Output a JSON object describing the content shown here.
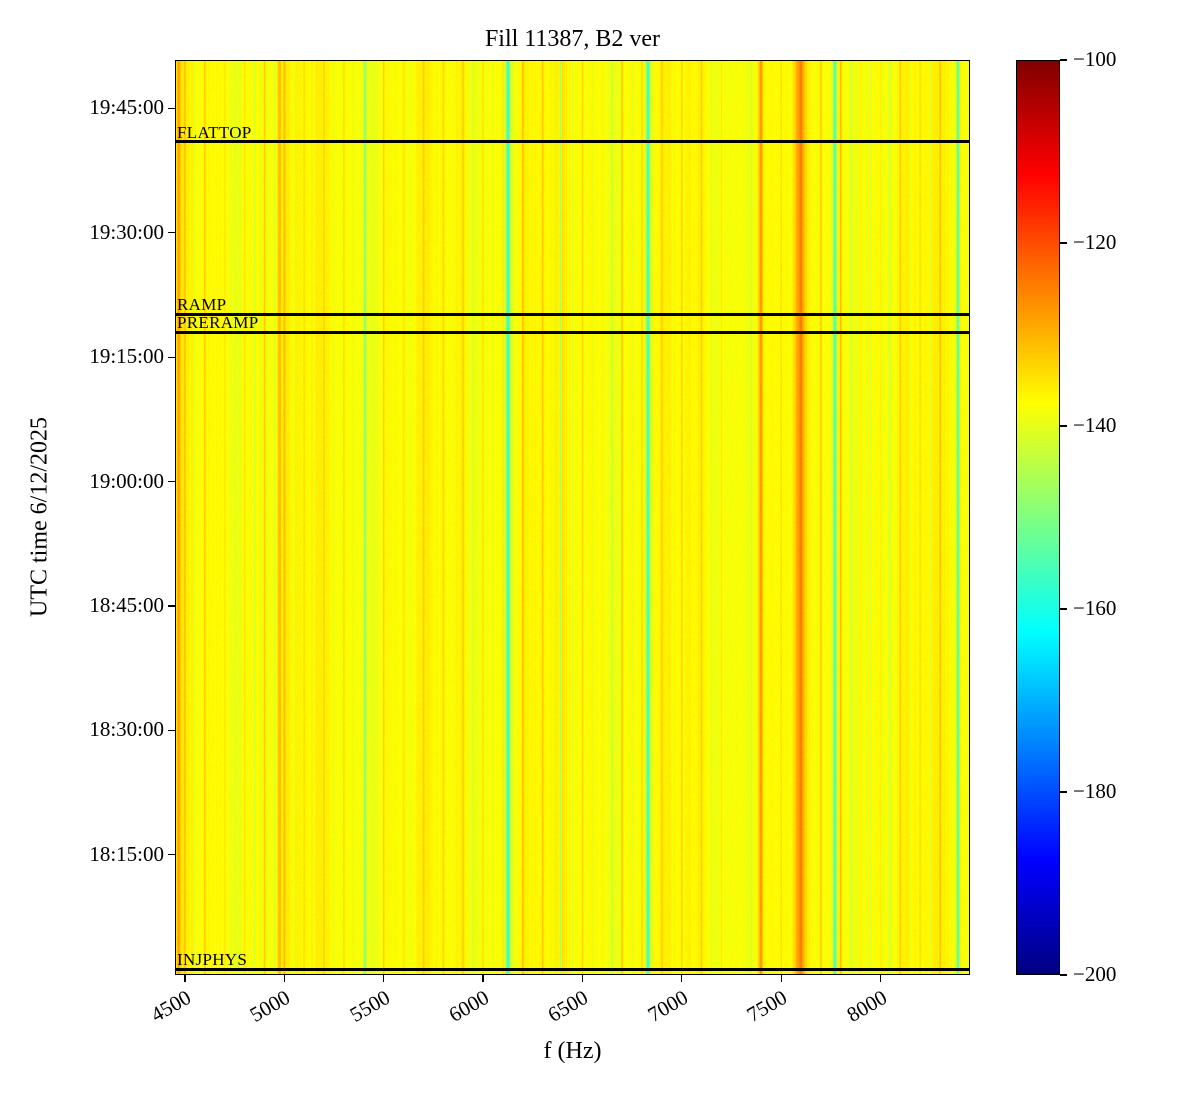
{
  "figure": {
    "title": "Fill 11387, B2 ver",
    "xlabel": "f (Hz)",
    "ylabel": "UTC time 6/12/2025"
  },
  "chart_data": {
    "type": "heatmap",
    "title": "Fill 11387, B2 ver",
    "xlabel": "f (Hz)",
    "ylabel": "UTC time 6/12/2025",
    "x_range_hz": [
      4450,
      8450
    ],
    "x_ticks_hz": [
      4500,
      5000,
      5500,
      6000,
      6500,
      7000,
      7500,
      8000
    ],
    "time_range": [
      "18:00:30",
      "19:50:50"
    ],
    "y_ticks": [
      "18:15:00",
      "18:30:00",
      "18:45:00",
      "19:00:00",
      "19:15:00",
      "19:30:00",
      "19:45:00"
    ],
    "colorbar": {
      "cmap": "jet",
      "vmin": -200,
      "vmax": -100,
      "ticks": [
        -100,
        -120,
        -140,
        -160,
        -180,
        -200
      ]
    },
    "spectrum": {
      "background_db": -137.5,
      "jitter_db": 0.9,
      "row_noise_db": 0.5,
      "slow_wave": [
        {
          "period_hz": 620,
          "amp_db": 1.0
        },
        {
          "period_hz": 173,
          "amp_db": 0.8
        }
      ],
      "comb_spacing_hz": 100,
      "comb_amp_db": 6.0,
      "comb_width_hz": 8,
      "subcomb_offset_hz": 50,
      "subcomb_amp_db": -4.0,
      "subcomb_width_hz": 6,
      "features": [
        {
          "f_hz": 4468,
          "width_hz": 14,
          "delta_db": 8
        },
        {
          "f_hz": 4975,
          "width_hz": 12,
          "delta_db": 7
        },
        {
          "f_hz": 5405,
          "width_hz": 10,
          "delta_db": -12
        },
        {
          "f_hz": 6125,
          "width_hz": 14,
          "delta_db": -19
        },
        {
          "f_hz": 6390,
          "width_hz": 8,
          "delta_db": -10
        },
        {
          "f_hz": 6830,
          "width_hz": 14,
          "delta_db": -18
        },
        {
          "f_hz": 7395,
          "width_hz": 16,
          "delta_db": 8
        },
        {
          "f_hz": 7595,
          "width_hz": 36,
          "delta_db": 9.5
        },
        {
          "f_hz": 7770,
          "width_hz": 14,
          "delta_db": -19
        },
        {
          "f_hz": 8390,
          "width_hz": 12,
          "delta_db": -16
        }
      ]
    },
    "beam_modes": [
      {
        "label": "FLATTOP",
        "time": "19:41:00"
      },
      {
        "label": "RAMP",
        "time": "19:20:10"
      },
      {
        "label": "PRERAMP",
        "time": "19:18:00"
      },
      {
        "label": "INJPHYS",
        "time": "18:01:10"
      }
    ]
  }
}
